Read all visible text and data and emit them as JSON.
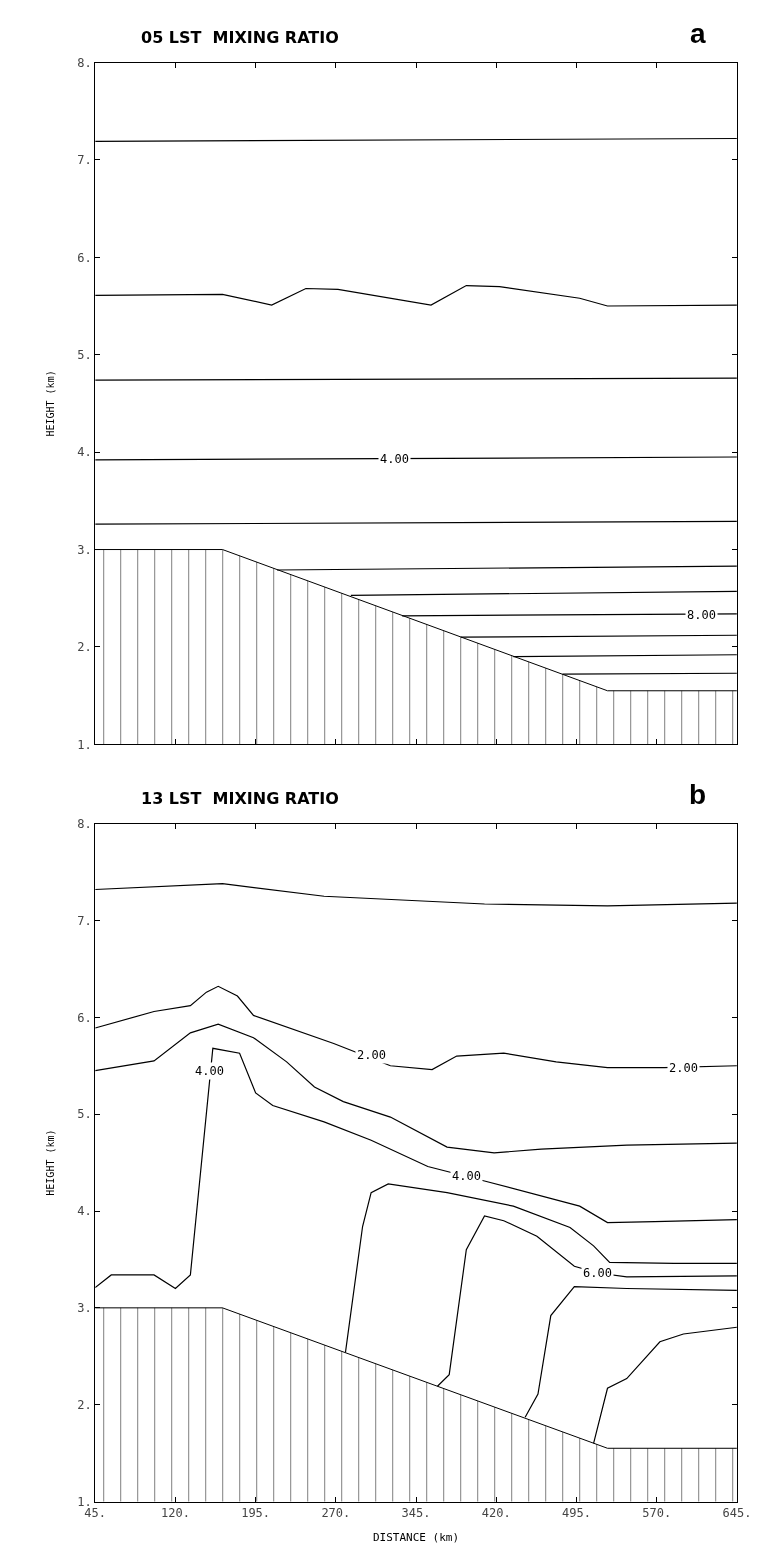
{
  "chart_data": [
    {
      "type": "line",
      "title": "05 LST  MIXING RATIO",
      "ylabel": "HEIGHT (km)",
      "tick_labels": "y",
      "grid": false,
      "marker": "none",
      "line_style": "solid",
      "xlim": [
        45,
        645
      ],
      "xticks": [
        45,
        120,
        195,
        270,
        345,
        420,
        495,
        570,
        645
      ],
      "ylim": [
        1,
        8
      ],
      "yticks": [
        {
          "value": 1,
          "label": "1."
        },
        {
          "value": 2,
          "label": "2."
        },
        {
          "value": 3,
          "label": "3."
        },
        {
          "value": 4,
          "label": "4."
        },
        {
          "value": 5,
          "label": "5."
        },
        {
          "value": 6,
          "label": "6."
        },
        {
          "value": 7,
          "label": "7."
        },
        {
          "value": 8,
          "label": "8."
        }
      ],
      "annotations": [
        "a",
        {
          "text": "4.00",
          "x": 325,
          "y": 3.93
        },
        {
          "text": "8.00",
          "x": 612,
          "y": 2.33
        }
      ],
      "series": [
        {
          "type": "area",
          "color": "#000000",
          "x": [
            45,
            164,
            524,
            645
          ],
          "values": [
            3,
            3,
            1.55,
            1.55
          ]
        },
        {
          "color": "#000000",
          "x": [
            45,
            645
          ],
          "values": [
            7.19,
            7.22
          ]
        },
        {
          "color": "#000000",
          "x": [
            45,
            164,
            210,
            242,
            272,
            359,
            392,
            423,
            498,
            524,
            645
          ],
          "values": [
            5.61,
            5.62,
            5.51,
            5.68,
            5.67,
            5.51,
            5.71,
            5.7,
            5.58,
            5.5,
            5.51
          ]
        },
        {
          "color": "#000000",
          "x": [
            45,
            645
          ],
          "values": [
            4.74,
            4.76
          ]
        },
        {
          "color": "#000000",
          "x": [
            45,
            645
          ],
          "values": [
            3.92,
            3.95
          ]
        },
        {
          "color": "#000000",
          "x": [
            45,
            645
          ],
          "values": [
            3.26,
            3.29
          ]
        },
        {
          "color": "#000000",
          "x": [
            215,
            645
          ],
          "values": [
            2.79,
            2.83
          ]
        },
        {
          "color": "#000000",
          "x": [
            284,
            645
          ],
          "values": [
            2.53,
            2.57
          ]
        },
        {
          "color": "#000000",
          "x": [
            332,
            645
          ],
          "values": [
            2.32,
            2.34
          ]
        },
        {
          "color": "#000000",
          "x": [
            387,
            645
          ],
          "values": [
            2.1,
            2.12
          ]
        },
        {
          "color": "#000000",
          "x": [
            436,
            645
          ],
          "values": [
            1.9,
            1.92
          ]
        },
        {
          "color": "#000000",
          "x": [
            482,
            645
          ],
          "values": [
            1.72,
            1.73
          ]
        }
      ]
    },
    {
      "type": "line",
      "title": "13 LST  MIXING RATIO",
      "xlabel": "DISTANCE (km)",
      "ylabel": "HEIGHT (km)",
      "grid": false,
      "marker": "none",
      "line_style": "solid",
      "xlim": [
        45,
        645
      ],
      "xticks": [
        {
          "value": 45,
          "label": "45."
        },
        {
          "value": 120,
          "label": "120."
        },
        {
          "value": 195,
          "label": "195."
        },
        {
          "value": 270,
          "label": "270."
        },
        {
          "value": 345,
          "label": "345."
        },
        {
          "value": 420,
          "label": "420."
        },
        {
          "value": 495,
          "label": "495."
        },
        {
          "value": 570,
          "label": "570."
        },
        {
          "value": 645,
          "label": "645."
        }
      ],
      "ylim": [
        1,
        8
      ],
      "yticks": [
        {
          "value": 1,
          "label": "1."
        },
        {
          "value": 2,
          "label": "2."
        },
        {
          "value": 3,
          "label": "3."
        },
        {
          "value": 4,
          "label": "4."
        },
        {
          "value": 5,
          "label": "5."
        },
        {
          "value": 6,
          "label": "6."
        },
        {
          "value": 7,
          "label": "7."
        },
        {
          "value": 8,
          "label": "8."
        }
      ],
      "annotations": [
        "b",
        {
          "text": "2.00",
          "x": 303,
          "y": 5.61
        },
        {
          "text": "2.00",
          "x": 595,
          "y": 5.48
        },
        {
          "text": "4.00",
          "x": 152,
          "y": 5.45
        },
        {
          "text": "4.00",
          "x": 392,
          "y": 4.36
        },
        {
          "text": "6.00",
          "x": 515,
          "y": 3.36
        }
      ],
      "series": [
        {
          "type": "area",
          "color": "#000000",
          "x": [
            45,
            164,
            524,
            645
          ],
          "values": [
            3,
            3,
            1.55,
            1.55
          ]
        },
        {
          "color": "#000000",
          "x": [
            45,
            164,
            259,
            409,
            524,
            645
          ],
          "values": [
            7.32,
            7.38,
            7.25,
            7.17,
            7.15,
            7.18
          ]
        },
        {
          "color": "#000000",
          "x": [
            45,
            100,
            134,
            149,
            160,
            178,
            193,
            268,
            321,
            360,
            383,
            427,
            476,
            524,
            577,
            645
          ],
          "values": [
            5.89,
            6.06,
            6.12,
            6.26,
            6.32,
            6.22,
            6.02,
            5.73,
            5.5,
            5.46,
            5.6,
            5.63,
            5.54,
            5.48,
            5.48,
            5.5
          ]
        },
        {
          "color": "#000000",
          "x": [
            45,
            100,
            134,
            160,
            193,
            224,
            250,
            277,
            321,
            374,
            418,
            462,
            542,
            645
          ],
          "values": [
            5.45,
            5.55,
            5.84,
            5.93,
            5.79,
            5.54,
            5.28,
            5.13,
            4.97,
            4.66,
            4.6,
            4.64,
            4.68,
            4.7
          ]
        },
        {
          "color": "#000000",
          "x": [
            45,
            60,
            100,
            120,
            134,
            155,
            180,
            195,
            211,
            259,
            303,
            356,
            409,
            498,
            524,
            568,
            645
          ],
          "values": [
            3.21,
            3.34,
            3.34,
            3.2,
            3.34,
            5.68,
            5.63,
            5.22,
            5.09,
            4.92,
            4.73,
            4.46,
            4.31,
            4.05,
            3.88,
            3.89,
            3.91
          ]
        },
        {
          "color": "#000000",
          "x": [
            279,
            295,
            303,
            319,
            374,
            436,
            489,
            511,
            526,
            586,
            645
          ],
          "values": [
            2.54,
            3.84,
            4.19,
            4.28,
            4.19,
            4.05,
            3.83,
            3.64,
            3.47,
            3.46,
            3.46
          ]
        },
        {
          "color": "#000000",
          "x": [
            365,
            376,
            392,
            409,
            427,
            458,
            493,
            515,
            542,
            645
          ],
          "values": [
            2.19,
            2.31,
            3.6,
            3.95,
            3.9,
            3.74,
            3.43,
            3.36,
            3.32,
            3.33
          ]
        },
        {
          "color": "#000000",
          "x": [
            447,
            459,
            471,
            493,
            542,
            645
          ],
          "values": [
            1.87,
            2.11,
            2.92,
            3.22,
            3.2,
            3.18
          ]
        },
        {
          "color": "#000000",
          "x": [
            511,
            524,
            542,
            573,
            595,
            645
          ],
          "values": [
            1.6,
            2.17,
            2.27,
            2.65,
            2.73,
            2.8
          ]
        }
      ]
    }
  ]
}
